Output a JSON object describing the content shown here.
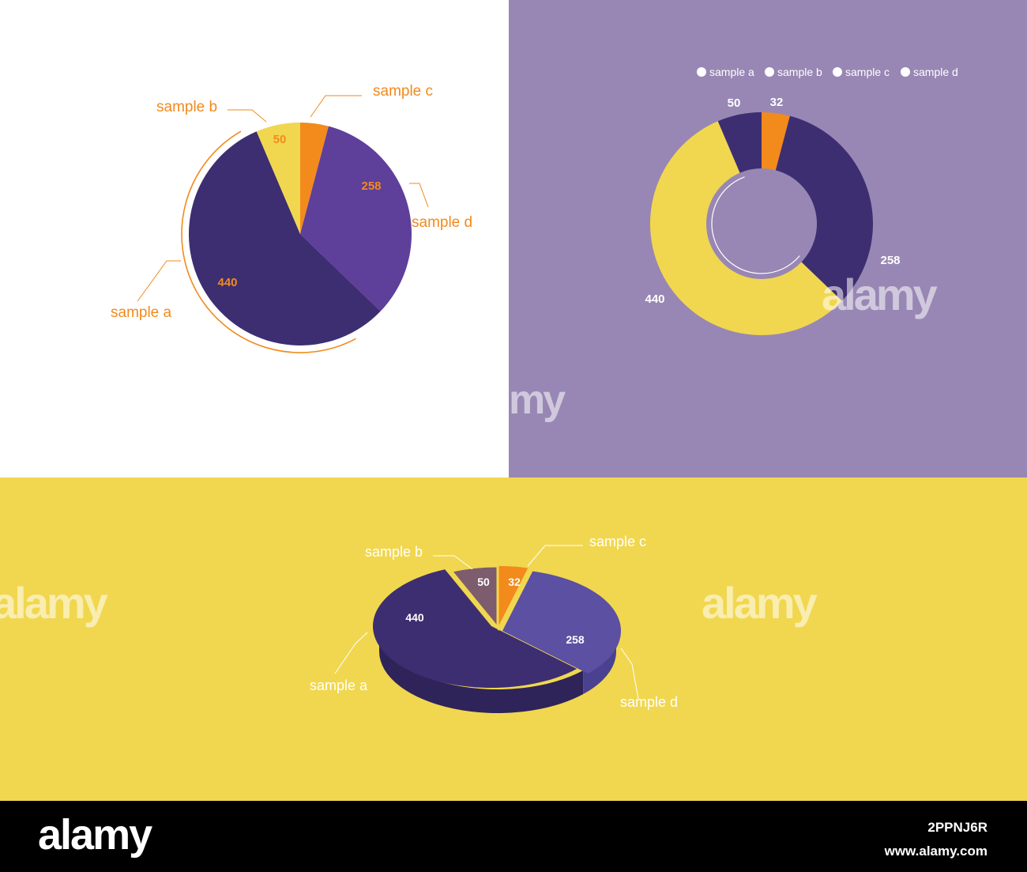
{
  "colors": {
    "purple_dark": "#3d2e72",
    "purple_mid": "#5e3f9a",
    "purple_blue": "#5b50a2",
    "yellow": "#f1d74f",
    "orange": "#f28a1c",
    "mauve_bg": "#9887b4",
    "white": "#ffffff"
  },
  "chart_data": [
    {
      "type": "pie",
      "categories": [
        "sample a",
        "sample b",
        "sample c",
        "sample d"
      ],
      "values": [
        440,
        50,
        32,
        258
      ],
      "value_labels": [
        "440",
        "50",
        "",
        "258"
      ],
      "legend": "callout labels"
    },
    {
      "type": "pie",
      "style": "donut",
      "categories": [
        "sample a",
        "sample b",
        "sample c",
        "sample d"
      ],
      "values": [
        440,
        50,
        32,
        258
      ],
      "value_labels": [
        "440",
        "50",
        "32",
        "258"
      ],
      "legend": "top"
    },
    {
      "type": "pie",
      "style": "3d",
      "categories": [
        "sample a",
        "sample b",
        "sample c",
        "sample d"
      ],
      "values": [
        440,
        50,
        32,
        258
      ],
      "value_labels": [
        "440",
        "50",
        "32",
        "258"
      ],
      "legend": "callout labels"
    }
  ],
  "watermark": {
    "logo": "alamy",
    "image_id": "2PPNJ6R",
    "url": "www.alamy.com"
  }
}
